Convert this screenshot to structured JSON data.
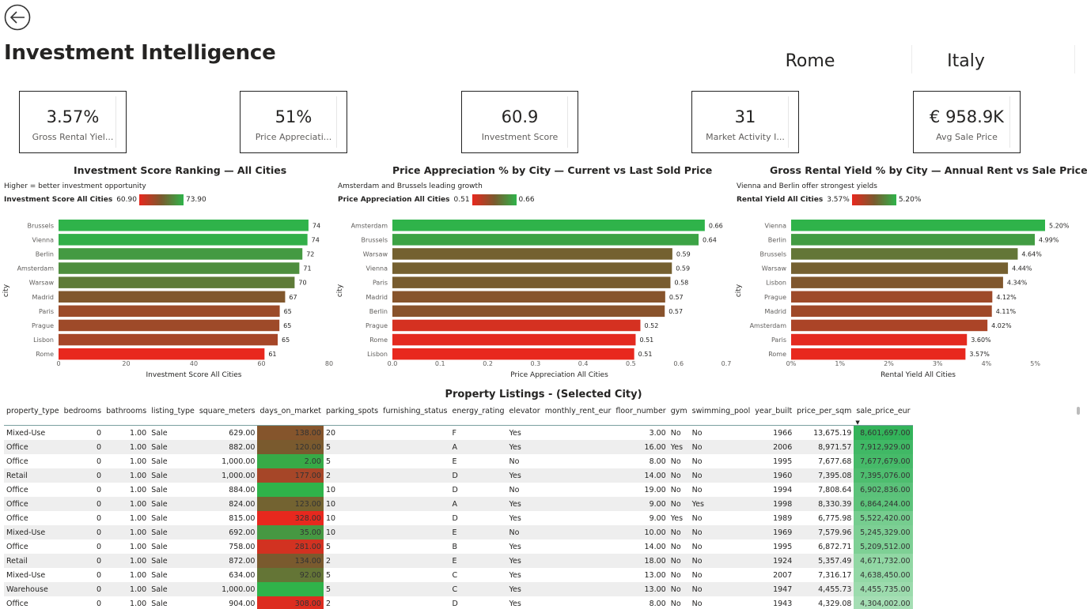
{
  "page": {
    "title": "Investment Intelligence"
  },
  "slicers": {
    "city": "Rome",
    "country": "Italy"
  },
  "kpis": [
    {
      "value": "3.57%",
      "label": "Gross Rental Yiel..."
    },
    {
      "value": "51%",
      "label": "Price Appreciati..."
    },
    {
      "value": "60.9",
      "label": "Investment Score"
    },
    {
      "value": "31",
      "label": "Market Activity I..."
    },
    {
      "value": "€ 958.9K",
      "label": "Avg Sale Price"
    }
  ],
  "colors": {
    "low": "#e8281e",
    "mid": "#7a5a2e",
    "high": "#2fb34a",
    "header_rule": "#7aa0a0"
  },
  "chart_data": [
    {
      "type": "bar",
      "orientation": "horizontal",
      "title": "Investment Score Ranking — All Cities",
      "subtitle": "Higher = better investment opportunity",
      "legend": {
        "label": "Investment Score All Cities",
        "min": "60.90",
        "max": "73.90"
      },
      "xlabel": "Investment Score All Cities",
      "ylabel": "city",
      "xlim": [
        0,
        80
      ],
      "xticks": [
        0,
        20,
        40,
        60,
        80
      ],
      "tick_labels": [
        "0",
        "20",
        "40",
        "60",
        "80"
      ],
      "categories": [
        "Brussels",
        "Vienna",
        "Berlin",
        "Amsterdam",
        "Warsaw",
        "Madrid",
        "Paris",
        "Prague",
        "Lisbon",
        "Rome"
      ],
      "values": [
        73.9,
        73.6,
        72.1,
        71.2,
        69.8,
        67.0,
        65.4,
        65.3,
        64.8,
        60.9
      ],
      "data_labels": [
        "74",
        "74",
        "72",
        "71",
        "70",
        "67",
        "65",
        "65",
        "65",
        "61"
      ],
      "color_min": 60.9,
      "color_max": 73.9
    },
    {
      "type": "bar",
      "orientation": "horizontal",
      "title": "Price Appreciation % by City — Current vs Last Sold Price",
      "subtitle": "Amsterdam and Brussels leading growth",
      "legend": {
        "label": "Price Appreciation All Cities",
        "min": "0.51",
        "max": "0.66"
      },
      "xlabel": "Price Appreciation All Cities",
      "ylabel": "city",
      "xlim": [
        0,
        0.7
      ],
      "xticks": [
        0,
        0.1,
        0.2,
        0.3,
        0.4,
        0.5,
        0.6,
        0.7
      ],
      "tick_labels": [
        "0.0",
        "0.1",
        "0.2",
        "0.3",
        "0.4",
        "0.5",
        "0.6",
        "0.7"
      ],
      "categories": [
        "Amsterdam",
        "Brussels",
        "Warsaw",
        "Vienna",
        "Paris",
        "Madrid",
        "Berlin",
        "Prague",
        "Rome",
        "Lisbon"
      ],
      "values": [
        0.655,
        0.642,
        0.587,
        0.586,
        0.583,
        0.572,
        0.571,
        0.52,
        0.51,
        0.507
      ],
      "data_labels": [
        "0.66",
        "0.64",
        "0.59",
        "0.59",
        "0.58",
        "0.57",
        "0.57",
        "0.52",
        "0.51",
        "0.51"
      ],
      "color_min": 0.507,
      "color_max": 0.655
    },
    {
      "type": "bar",
      "orientation": "horizontal",
      "title": "Gross Rental Yield % by City — Annual Rent vs Sale Price",
      "subtitle": "Vienna and Berlin offer strongest yields",
      "legend": {
        "label": "Rental Yield All Cities",
        "min": "3.57%",
        "max": "5.20%"
      },
      "xlabel": "Rental Yield All Cities",
      "ylabel": "city",
      "xlim": [
        0,
        5.2
      ],
      "xticks": [
        0,
        1,
        2,
        3,
        4,
        5
      ],
      "tick_labels": [
        "0%",
        "1%",
        "2%",
        "3%",
        "4%",
        "5%"
      ],
      "categories": [
        "Vienna",
        "Berlin",
        "Brussels",
        "Warsaw",
        "Lisbon",
        "Prague",
        "Madrid",
        "Amsterdam",
        "Paris",
        "Rome"
      ],
      "values": [
        5.2,
        4.99,
        4.64,
        4.44,
        4.34,
        4.12,
        4.11,
        4.02,
        3.6,
        3.57
      ],
      "data_labels": [
        "5.20%",
        "4.99%",
        "4.64%",
        "4.44%",
        "4.34%",
        "4.12%",
        "4.11%",
        "4.02%",
        "3.60%",
        "3.57%"
      ],
      "color_min": 3.57,
      "color_max": 5.2
    }
  ],
  "table": {
    "title": "Property Listings - (Selected City)",
    "columns": [
      "property_type",
      "bedrooms",
      "bathrooms",
      "listing_type",
      "square_meters",
      "days_on_market",
      "parking_spots",
      "furnishing_status",
      "energy_rating",
      "elevator",
      "monthly_rent_eur",
      "floor_number",
      "gym",
      "swimming_pool",
      "year_built",
      "price_per_sqm",
      "sale_price_eur"
    ],
    "rows": [
      [
        "Mixed-Use",
        "0",
        "1.00",
        "Sale",
        "629.00",
        "138.00",
        "20",
        "",
        "F",
        "Yes",
        "",
        "3.00",
        "No",
        "No",
        "1966",
        "13,675.19",
        "8,601,697.00"
      ],
      [
        "Office",
        "0",
        "1.00",
        "Sale",
        "882.00",
        "120.00",
        "5",
        "",
        "A",
        "Yes",
        "",
        "16.00",
        "Yes",
        "No",
        "2006",
        "8,971.57",
        "7,912,929.00"
      ],
      [
        "Office",
        "0",
        "1.00",
        "Sale",
        "1,000.00",
        "2.00",
        "5",
        "",
        "E",
        "No",
        "",
        "8.00",
        "No",
        "No",
        "1995",
        "7,677.68",
        "7,677,679.00"
      ],
      [
        "Retail",
        "0",
        "1.00",
        "Sale",
        "1,000.00",
        "177.00",
        "2",
        "",
        "D",
        "Yes",
        "",
        "14.00",
        "No",
        "No",
        "1960",
        "7,395.08",
        "7,395,076.00"
      ],
      [
        "Office",
        "0",
        "1.00",
        "Sale",
        "884.00",
        "",
        "10",
        "",
        "D",
        "No",
        "",
        "19.00",
        "No",
        "No",
        "1994",
        "7,808.64",
        "6,902,836.00"
      ],
      [
        "Office",
        "0",
        "1.00",
        "Sale",
        "824.00",
        "123.00",
        "10",
        "",
        "A",
        "Yes",
        "",
        "9.00",
        "No",
        "Yes",
        "1998",
        "8,330.39",
        "6,864,244.00"
      ],
      [
        "Office",
        "0",
        "1.00",
        "Sale",
        "815.00",
        "328.00",
        "10",
        "",
        "D",
        "Yes",
        "",
        "9.00",
        "Yes",
        "No",
        "1989",
        "6,775.98",
        "5,522,420.00"
      ],
      [
        "Mixed-Use",
        "0",
        "1.00",
        "Sale",
        "692.00",
        "35.00",
        "10",
        "",
        "E",
        "No",
        "",
        "10.00",
        "No",
        "No",
        "1969",
        "7,579.96",
        "5,245,329.00"
      ],
      [
        "Office",
        "0",
        "1.00",
        "Sale",
        "758.00",
        "281.00",
        "5",
        "",
        "B",
        "Yes",
        "",
        "14.00",
        "No",
        "No",
        "1995",
        "6,872.71",
        "5,209,512.00"
      ],
      [
        "Retail",
        "0",
        "1.00",
        "Sale",
        "872.00",
        "134.00",
        "2",
        "",
        "E",
        "Yes",
        "",
        "18.00",
        "No",
        "No",
        "1924",
        "5,357.49",
        "4,671,732.00"
      ],
      [
        "Mixed-Use",
        "0",
        "1.00",
        "Sale",
        "634.00",
        "92.00",
        "5",
        "",
        "C",
        "Yes",
        "",
        "13.00",
        "No",
        "No",
        "2007",
        "7,316.17",
        "4,638,450.00"
      ],
      [
        "Warehouse",
        "0",
        "1.00",
        "Sale",
        "1,000.00",
        "",
        "5",
        "",
        "C",
        "Yes",
        "",
        "13.00",
        "No",
        "No",
        "1947",
        "4,455.73",
        "4,455,735.00"
      ],
      [
        "Office",
        "0",
        "1.00",
        "Sale",
        "904.00",
        "308.00",
        "2",
        "",
        "D",
        "Yes",
        "",
        "8.00",
        "No",
        "No",
        "1943",
        "4,329.08",
        "4,304,002.00"
      ]
    ],
    "days_on_market_color_levels": [
      0.55,
      0.5,
      0.05,
      0.7,
      0.0,
      0.45,
      1.0,
      0.15,
      0.9,
      0.5,
      0.35,
      0.0,
      0.95
    ],
    "sale_price_shade_levels": [
      1.0,
      0.9,
      0.86,
      0.8,
      0.7,
      0.69,
      0.5,
      0.45,
      0.44,
      0.3,
      0.28,
      0.22,
      0.15
    ],
    "sort_column": "sale_price_eur",
    "sort_direction": "descending"
  }
}
